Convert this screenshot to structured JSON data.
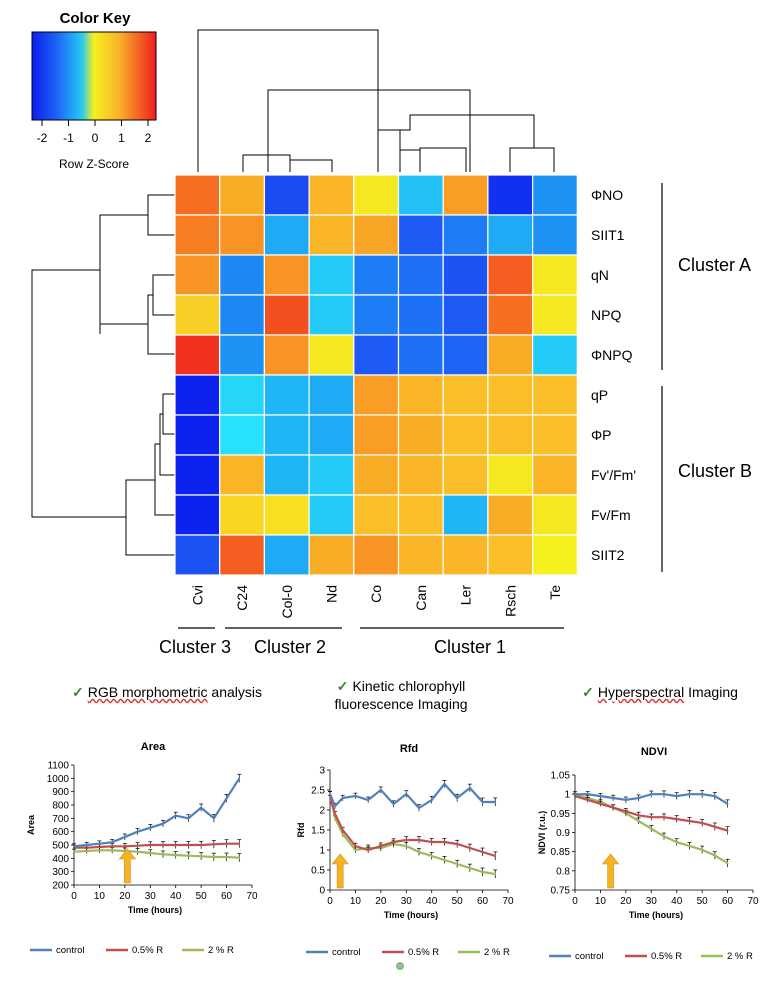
{
  "heatmap": {
    "color_key": {
      "title": "Color Key",
      "xlabel": "Row Z-Score",
      "ticks": [
        "-2",
        "-1",
        "0",
        "1",
        "2"
      ]
    },
    "rows": [
      "ΦNO",
      "SIIT1",
      "qN",
      "NPQ",
      "ΦNPQ",
      "qP",
      "ΦP",
      "Fv'/Fm'",
      "Fv/Fm",
      "SIIT2"
    ],
    "cols": [
      "Cvi",
      "C24",
      "Col-0",
      "Nd",
      "Co",
      "Can",
      "Ler",
      "Rsch",
      "Te"
    ],
    "zscores": [
      [
        1.6,
        1.0,
        -1.7,
        0.9,
        0.3,
        -0.6,
        1.2,
        -2.1,
        -1.0
      ],
      [
        1.5,
        1.3,
        -0.8,
        0.9,
        1.1,
        -1.5,
        -1.2,
        -0.8,
        -1.0
      ],
      [
        1.3,
        -1.1,
        1.3,
        -0.5,
        -1.2,
        -1.3,
        -1.6,
        1.7,
        0.3
      ],
      [
        0.6,
        -1.1,
        1.8,
        -0.5,
        -1.2,
        -1.3,
        -1.5,
        1.6,
        0.3
      ],
      [
        2.0,
        -1.0,
        1.3,
        0.3,
        -1.5,
        -1.3,
        -1.4,
        1.0,
        -0.5
      ],
      [
        -2.3,
        -0.4,
        -0.7,
        -0.8,
        1.2,
        0.9,
        0.8,
        0.8,
        0.8
      ],
      [
        -2.3,
        -0.3,
        -0.7,
        -0.8,
        1.2,
        1.0,
        0.8,
        0.8,
        0.8
      ],
      [
        -2.3,
        0.9,
        -0.7,
        -0.5,
        1.0,
        0.9,
        0.8,
        0.3,
        0.9
      ],
      [
        -2.3,
        0.5,
        0.4,
        -0.5,
        0.8,
        0.8,
        -0.7,
        1.0,
        0.3
      ],
      [
        -1.6,
        1.7,
        -0.8,
        1.0,
        1.3,
        0.9,
        0.9,
        0.8,
        0.2
      ]
    ],
    "clusters": {
      "cluster_a": "Cluster A",
      "cluster_b": "Cluster B",
      "cluster_1": "Cluster 1",
      "cluster_2": "Cluster 2",
      "cluster_3": "Cluster 3"
    }
  },
  "captions": {
    "rgb_check": "✓",
    "rgb_text_underlined": "RGB morphometric",
    "rgb_text_rest": "analysis",
    "kinetic_check": "✓",
    "kinetic_line1": "Kinetic chlorophyll",
    "kinetic_line2": "fluorescence Imaging",
    "hyper_check": "✓",
    "hyper_text_underlined": "Hyperspectral",
    "hyper_text_rest": "Imaging"
  },
  "colors": {
    "control": "#4f81bd",
    "r05": "#c0504d",
    "r2": "#9bbb59",
    "arrow": "#f5b324"
  },
  "chart_data": [
    {
      "type": "line",
      "title": "Area",
      "xlabel": "Time (hours)",
      "ylabel": "Area",
      "xlim": [
        0,
        70
      ],
      "ylim": [
        200,
        1100
      ],
      "xticks": [
        "0",
        "10",
        "20",
        "30",
        "40",
        "50",
        "60",
        "70"
      ],
      "yticks": [
        "200",
        "300",
        "400",
        "500",
        "600",
        "700",
        "800",
        "900",
        "1000",
        "1100"
      ],
      "arrow_x": 21,
      "series": [
        {
          "name": "control",
          "x": [
            0,
            5,
            10,
            15,
            20,
            25,
            30,
            35,
            40,
            45,
            50,
            55,
            60,
            65
          ],
          "values": [
            490,
            500,
            510,
            520,
            560,
            600,
            630,
            660,
            720,
            700,
            780,
            700,
            850,
            1000
          ]
        },
        {
          "name": "0.5% R",
          "x": [
            0,
            5,
            10,
            15,
            20,
            25,
            30,
            35,
            40,
            45,
            50,
            55,
            60,
            65
          ],
          "values": [
            480,
            480,
            485,
            490,
            490,
            495,
            500,
            500,
            500,
            500,
            500,
            505,
            510,
            510
          ]
        },
        {
          "name": "2 % R",
          "x": [
            0,
            5,
            10,
            15,
            20,
            25,
            30,
            35,
            40,
            45,
            50,
            55,
            60,
            65
          ],
          "values": [
            450,
            455,
            460,
            460,
            455,
            450,
            440,
            430,
            425,
            420,
            415,
            410,
            410,
            405
          ]
        }
      ],
      "legend": [
        "control",
        "0.5% R",
        "2 % R"
      ]
    },
    {
      "type": "line",
      "title": "Rfd",
      "xlabel": "Time (hours)",
      "ylabel": "Rfd",
      "xlim": [
        0,
        70
      ],
      "ylim": [
        0,
        3
      ],
      "xticks": [
        "0",
        "10",
        "20",
        "30",
        "40",
        "50",
        "60",
        "70"
      ],
      "yticks": [
        "0",
        "0.5",
        "1",
        "1.5",
        "2",
        "2.5",
        "3"
      ],
      "arrow_x": 4,
      "series": [
        {
          "name": "control",
          "x": [
            0,
            2,
            5,
            10,
            15,
            20,
            25,
            30,
            35,
            40,
            45,
            50,
            55,
            60,
            65
          ],
          "values": [
            2.4,
            2.1,
            2.3,
            2.35,
            2.25,
            2.5,
            2.15,
            2.4,
            2.05,
            2.25,
            2.65,
            2.3,
            2.55,
            2.2,
            2.2
          ]
        },
        {
          "name": "0.5% R",
          "x": [
            0,
            2,
            5,
            10,
            15,
            20,
            25,
            30,
            35,
            40,
            45,
            50,
            55,
            60,
            65
          ],
          "values": [
            2.3,
            1.9,
            1.5,
            1.1,
            1.0,
            1.1,
            1.2,
            1.25,
            1.25,
            1.2,
            1.2,
            1.15,
            1.05,
            0.95,
            0.85
          ]
        },
        {
          "name": "2 % R",
          "x": [
            0,
            2,
            5,
            10,
            15,
            20,
            25,
            30,
            35,
            40,
            45,
            50,
            55,
            60,
            65
          ],
          "values": [
            2.4,
            1.8,
            1.4,
            1.0,
            1.05,
            1.05,
            1.15,
            1.1,
            0.95,
            0.85,
            0.75,
            0.65,
            0.55,
            0.45,
            0.4
          ]
        }
      ],
      "legend": [
        "control",
        "0.5% R",
        "2 % R"
      ]
    },
    {
      "type": "line",
      "title": "NDVI",
      "xlabel": "Time (hours)",
      "ylabel": "NDVI (r.u.)",
      "xlim": [
        0,
        70
      ],
      "ylim": [
        0.75,
        1.05
      ],
      "xticks": [
        "0",
        "10",
        "20",
        "30",
        "40",
        "50",
        "60",
        "70"
      ],
      "yticks": [
        "0.75",
        "0.8",
        "0.85",
        "0.9",
        "0.95",
        "1",
        "1.05"
      ],
      "arrow_x": 14,
      "series": [
        {
          "name": "control",
          "x": [
            0,
            5,
            10,
            15,
            20,
            25,
            30,
            35,
            40,
            45,
            50,
            55,
            60
          ],
          "values": [
            1.0,
            1.0,
            0.995,
            0.99,
            0.985,
            0.99,
            1.0,
            1.0,
            0.995,
            1.0,
            1.0,
            0.995,
            0.975
          ]
        },
        {
          "name": "0.5% R",
          "x": [
            0,
            5,
            10,
            15,
            20,
            25,
            30,
            35,
            40,
            45,
            50,
            55,
            60
          ],
          "values": [
            0.995,
            0.985,
            0.975,
            0.965,
            0.955,
            0.945,
            0.94,
            0.94,
            0.935,
            0.93,
            0.925,
            0.915,
            0.905
          ]
        },
        {
          "name": "2 % R",
          "x": [
            0,
            5,
            10,
            15,
            20,
            25,
            30,
            35,
            40,
            45,
            50,
            55,
            60
          ],
          "values": [
            1.0,
            0.99,
            0.98,
            0.965,
            0.95,
            0.93,
            0.91,
            0.89,
            0.875,
            0.865,
            0.855,
            0.84,
            0.82
          ]
        }
      ],
      "legend": [
        "control",
        "0.5% R",
        "2 % R"
      ]
    }
  ]
}
